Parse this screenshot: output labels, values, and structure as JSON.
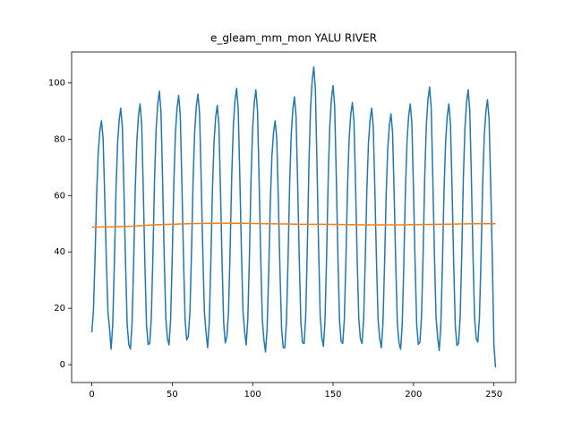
{
  "chart_data": {
    "type": "line",
    "title": "e_gleam_mm_mon YALU RIVER",
    "xlim": [
      -12.55,
      263.55
    ],
    "xticks": [
      0,
      50,
      100,
      150,
      200,
      250
    ],
    "ylim": [
      -6.33,
      110.93
    ],
    "yticks": [
      0,
      20,
      40,
      60,
      80,
      100
    ],
    "series": [
      {
        "color": "#1f77b4",
        "x": [
          0,
          1,
          2,
          3,
          4,
          5,
          6,
          7,
          8,
          9,
          10,
          11,
          12,
          13,
          14,
          15,
          16,
          17,
          18,
          19,
          20,
          21,
          22,
          23,
          24,
          25,
          26,
          27,
          28,
          29,
          30,
          31,
          32,
          33,
          34,
          35,
          36,
          37,
          38,
          39,
          40,
          41,
          42,
          43,
          44,
          45,
          46,
          47,
          48,
          49,
          50,
          51,
          52,
          53,
          54,
          55,
          56,
          57,
          58,
          59,
          60,
          61,
          62,
          63,
          64,
          65,
          66,
          67,
          68,
          69,
          70,
          71,
          72,
          73,
          74,
          75,
          76,
          77,
          78,
          79,
          80,
          81,
          82,
          83,
          84,
          85,
          86,
          87,
          88,
          89,
          90,
          91,
          92,
          93,
          94,
          95,
          96,
          97,
          98,
          99,
          100,
          101,
          102,
          103,
          104,
          105,
          106,
          107,
          108,
          109,
          110,
          111,
          112,
          113,
          114,
          115,
          116,
          117,
          118,
          119,
          120,
          121,
          122,
          123,
          124,
          125,
          126,
          127,
          128,
          129,
          130,
          131,
          132,
          133,
          134,
          135,
          136,
          137,
          138,
          139,
          140,
          141,
          142,
          143,
          144,
          145,
          146,
          147,
          148,
          149,
          150,
          151,
          152,
          153,
          154,
          155,
          156,
          157,
          158,
          159,
          160,
          161,
          162,
          163,
          164,
          165,
          166,
          167,
          168,
          169,
          170,
          171,
          172,
          173,
          174,
          175,
          176,
          177,
          178,
          179,
          180,
          181,
          182,
          183,
          184,
          185,
          186,
          187,
          188,
          189,
          190,
          191,
          192,
          193,
          194,
          195,
          196,
          197,
          198,
          199,
          200,
          201,
          202,
          203,
          204,
          205,
          206,
          207,
          208,
          209,
          210,
          211,
          212,
          213,
          214,
          215,
          216,
          217,
          218,
          219,
          220,
          221,
          222,
          223,
          224,
          225,
          226,
          227,
          228,
          229,
          230,
          231,
          232,
          233,
          234,
          235,
          236,
          237,
          238,
          239,
          240,
          241,
          242,
          243,
          244,
          245,
          246,
          247,
          248,
          249,
          250,
          251
        ],
        "values": [
          11.5,
          19,
          37.8,
          60.3,
          75.3,
          82.8,
          86.5,
          80.5,
          60.3,
          37.8,
          19,
          13,
          5.5,
          14.1,
          35.4,
          61.1,
          78.2,
          86.7,
          91,
          84.2,
          61.1,
          35.4,
          14.1,
          7.2,
          5.5,
          14.2,
          36,
          62.1,
          79.5,
          88.2,
          92.5,
          85.5,
          62.1,
          36,
          14.2,
          7.2,
          7.5,
          16.5,
          38.8,
          65.7,
          83.6,
          92.5,
          97,
          89.8,
          65.7,
          38.8,
          16.5,
          9.3,
          7,
          15.9,
          38,
          64.5,
          82.2,
          91.1,
          95.5,
          88.4,
          64.5,
          38,
          15.9,
          8.8,
          10,
          18.6,
          40.1,
          65.9,
          83.1,
          91.7,
          96,
          89.1,
          65.9,
          40.1,
          18.6,
          11.7,
          6,
          14.6,
          36.1,
          61.9,
          79.1,
          87.7,
          92,
          85.1,
          61.9,
          36.1,
          14.6,
          7.7,
          10,
          18.8,
          40.8,
          67.2,
          84.8,
          93.6,
          98,
          91,
          67.2,
          40.8,
          18.8,
          11.8,
          7,
          16.1,
          38.7,
          65.8,
          83.9,
          93,
          97.5,
          90.3,
          65.8,
          38.7,
          16.1,
          8.8,
          4.5,
          12.7,
          33.2,
          57.8,
          74.2,
          82.4,
          86.5,
          80,
          57.8,
          33.2,
          12.7,
          6.1,
          6,
          14.9,
          37.2,
          63.9,
          81.7,
          90.6,
          95,
          87.9,
          63.9,
          37.2,
          14.9,
          7.8,
          7.5,
          17.3,
          41.8,
          71.3,
          90.9,
          100.7,
          105.6,
          97.8,
          71.3,
          41.8,
          17.3,
          9.5,
          6.5,
          15.8,
          38.9,
          66.6,
          85.1,
          94.4,
          99,
          91.6,
          66.6,
          38.9,
          15.8,
          8.4,
          7.5,
          16.1,
          37.4,
          63.1,
          80.2,
          88.7,
          93,
          86.2,
          63.1,
          37.4,
          16.1,
          9.2,
          7.5,
          15.9,
          36.7,
          61.8,
          78.5,
          86.8,
          91,
          84.3,
          61.8,
          36.7,
          15.9,
          9.2,
          6,
          14.3,
          35.1,
          60,
          76.6,
          84.9,
          89,
          82.4,
          60,
          35.1,
          14.3,
          7.7,
          5.5,
          14.2,
          36,
          62.1,
          79.5,
          88.2,
          92.5,
          85.5,
          62.1,
          36,
          14.2,
          7.2,
          8,
          17.1,
          39.7,
          66.8,
          84.9,
          94,
          98.5,
          91.3,
          66.8,
          39.7,
          17.1,
          9.8,
          5,
          13.8,
          35.6,
          61.9,
          79.4,
          88.1,
          92.5,
          85.5,
          61.9,
          35.6,
          13.8,
          6.8,
          7.5,
          16.5,
          39,
          66,
          84,
          93,
          97.5,
          90.3,
          66,
          39,
          16.5,
          9.3,
          8,
          16.6,
          38.1,
          63.9,
          81.1,
          89.7,
          94,
          87.1,
          63.9,
          38.1,
          7,
          -1
        ]
      },
      {
        "color": "#ff7f0e",
        "x": [
          0,
          12,
          24,
          36,
          48,
          60,
          72,
          84,
          96,
          108,
          120,
          132,
          144,
          156,
          168,
          180,
          192,
          204,
          216,
          228,
          240,
          251
        ],
        "values": [
          48.8,
          48.9,
          49.1,
          49.5,
          49.8,
          50.0,
          50.1,
          50.2,
          50.1,
          50.0,
          49.9,
          49.8,
          49.8,
          49.7,
          49.6,
          49.6,
          49.6,
          49.7,
          49.8,
          49.9,
          50.0,
          50.0
        ]
      }
    ]
  }
}
